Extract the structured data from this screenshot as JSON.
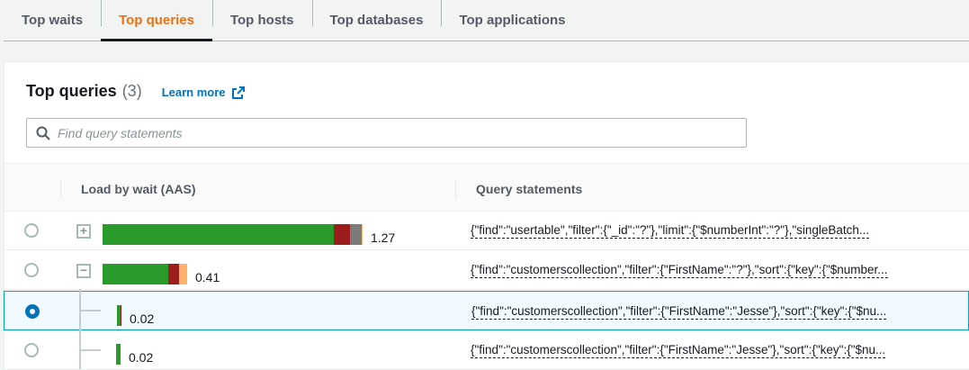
{
  "tabs": [
    {
      "label": "Top waits"
    },
    {
      "label": "Top queries",
      "active": true
    },
    {
      "label": "Top hosts"
    },
    {
      "label": "Top databases"
    },
    {
      "label": "Top applications"
    }
  ],
  "panel": {
    "title": "Top queries",
    "count": "(3)",
    "learn_more": "Learn more",
    "search_placeholder": "Find query statements"
  },
  "columns": {
    "load": "Load by wait (AAS)",
    "query": "Query statements"
  },
  "wait_colors": [
    "#2a9a2a",
    "#9d1c1c",
    "#7b7b7b",
    "#ffb26b"
  ],
  "rows": [
    {
      "load": "1.27",
      "segments": [
        1.13,
        0.08,
        0.056,
        0.004
      ],
      "expander": "+",
      "selected": false,
      "query": "{\"find\":\"usertable\",\"filter\":{\"_id\":\"?\"},\"limit\":{\"$numberInt\":\"?\"},\"singleBatch..."
    },
    {
      "load": "0.41",
      "segments": [
        0.32,
        0.053,
        0,
        0.04
      ],
      "expander": "−",
      "selected": false,
      "query": "{\"find\":\"customerscollection\",\"filter\":{\"FirstName\":\"?\"},\"sort\":{\"key\":{\"$number..."
    },
    {
      "load": "0.02",
      "segments": [
        0.018,
        0.002,
        0,
        0
      ],
      "child": true,
      "selected": true,
      "query": "{\"find\":\"customerscollection\",\"filter\":{\"FirstName\":\"Jesse\"},\"sort\":{\"key\":{\"$nu..."
    },
    {
      "load": "0.02",
      "segments": [
        0.02,
        0,
        0,
        0
      ],
      "child": true,
      "selected": false,
      "query": "{\"find\":\"customerscollection\",\"filter\":{\"FirstName\":\"Jesse\"},\"sort\":{\"key\":{\"$nu..."
    }
  ]
}
